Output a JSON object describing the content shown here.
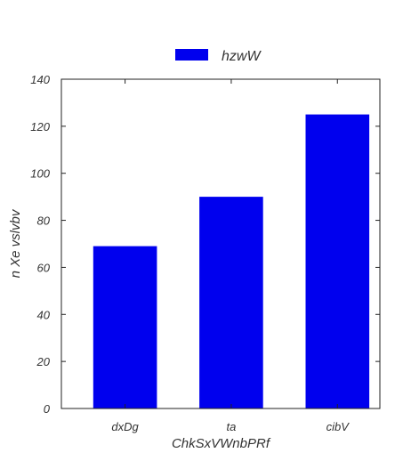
{
  "chart_data": {
    "type": "bar",
    "categories": [
      "dxDg",
      "ta",
      "cibV"
    ],
    "series": [
      {
        "name": "hzwW",
        "values": [
          69,
          90,
          125
        ],
        "color": "#0000ee"
      }
    ],
    "xlabel": "ChkSxVWnbPRf",
    "ylabel": "n Xe vslvbv",
    "ylim": [
      0,
      140
    ],
    "yticks": [
      0,
      20,
      40,
      60,
      80,
      100,
      120,
      140
    ],
    "grid": false,
    "legend": {
      "position": "top-center"
    }
  }
}
